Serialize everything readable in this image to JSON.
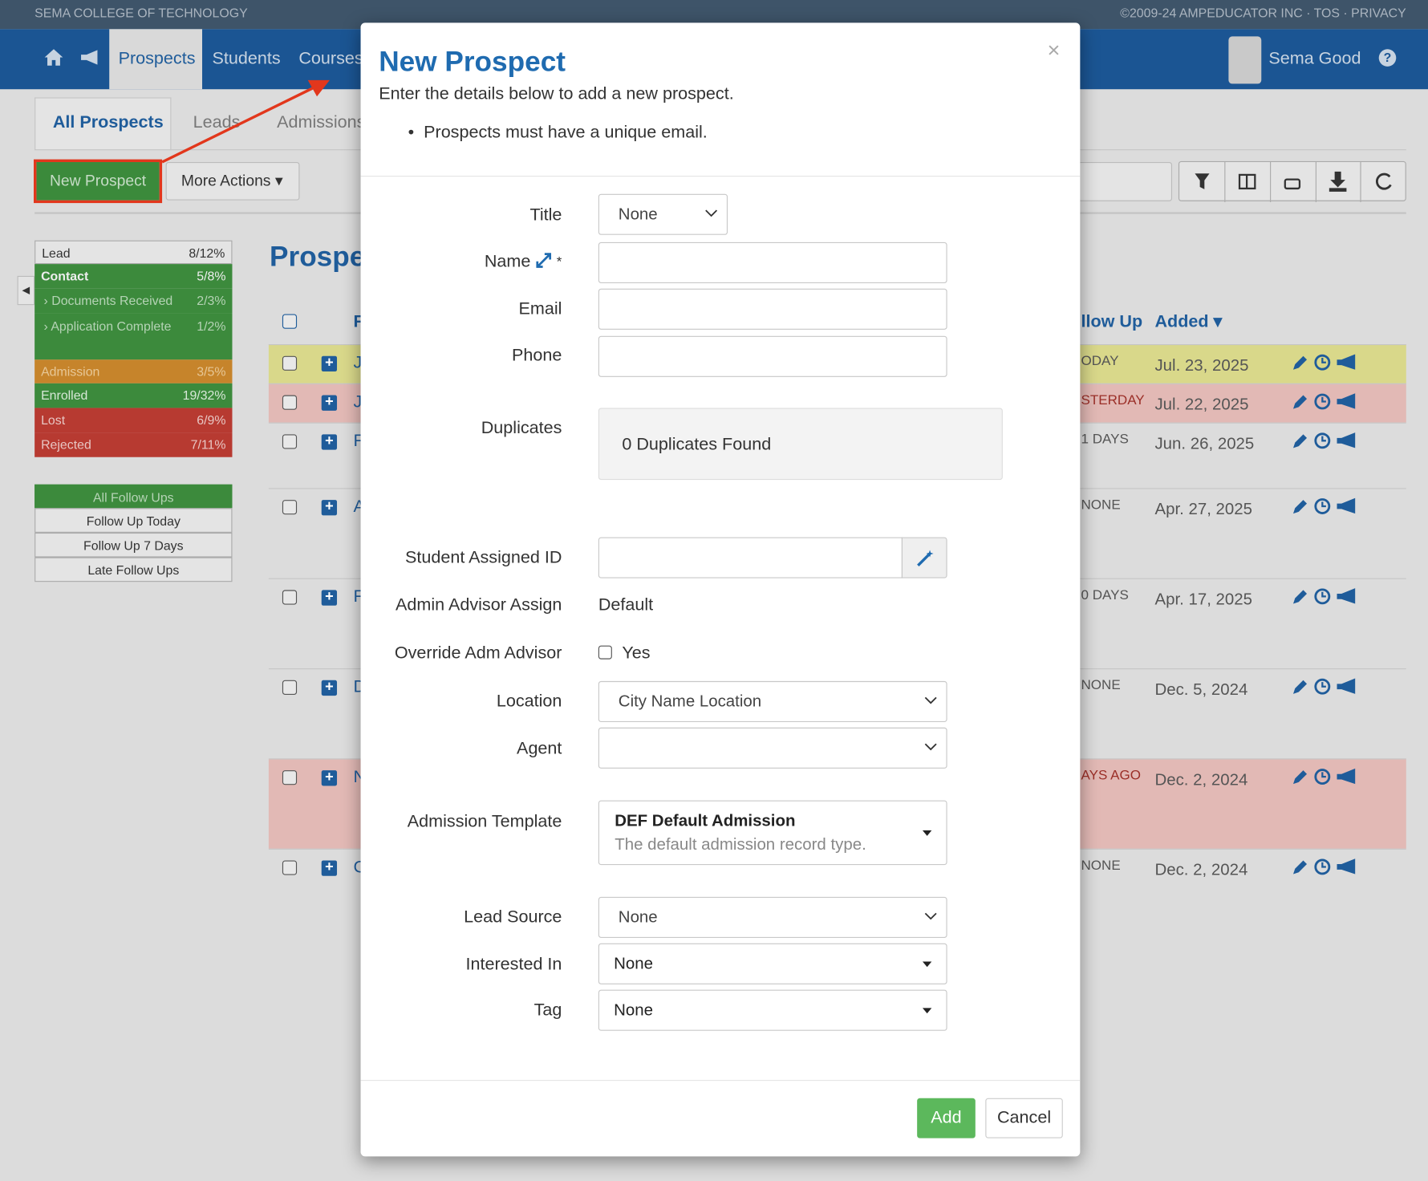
{
  "header": {
    "college": "SEMA COLLEGE OF TECHNOLOGY",
    "copyright": "©2009-24 AMPEDUCATOR INC",
    "tos": "TOS",
    "privacy": "PRIVACY"
  },
  "nav": {
    "items": [
      "Prospects",
      "Students",
      "Courses"
    ],
    "user": "Sema Good"
  },
  "tabs": [
    "All Prospects",
    "Leads",
    "Admissions"
  ],
  "toolbar": {
    "new_prospect": "New Prospect",
    "more_actions": "More Actions"
  },
  "sidebar": {
    "stages": [
      {
        "label": "Lead",
        "count": "8/12%"
      },
      {
        "label": "Contact",
        "count": "5/8%"
      },
      {
        "label": "Documents Received",
        "count": "2/3%"
      },
      {
        "label": "Application Complete",
        "count": "1/2%"
      },
      {
        "label": "Admission",
        "count": "3/5%"
      },
      {
        "label": "Enrolled",
        "count": "19/32%"
      },
      {
        "label": "Lost",
        "count": "6/9%"
      },
      {
        "label": "Rejected",
        "count": "7/11%"
      }
    ],
    "follow_ups": [
      "All Follow Ups",
      "Follow Up Today",
      "Follow Up 7 Days",
      "Late Follow Ups"
    ]
  },
  "list": {
    "title": "Prospe",
    "columns": [
      "F",
      "llow Up",
      "Added"
    ],
    "rows": [
      {
        "name": "J",
        "follow_up": "ODAY",
        "added": "Jul. 23, 2025"
      },
      {
        "name": "J",
        "follow_up": "STERDAY",
        "added": "Jul. 22, 2025"
      },
      {
        "name": "F",
        "follow_up": "1 DAYS",
        "added": "Jun. 26, 2025"
      },
      {
        "name": "A",
        "follow_up": "NONE",
        "added": "Apr. 27, 2025"
      },
      {
        "name": "F",
        "follow_up": "0 DAYS",
        "added": "Apr. 17, 2025"
      },
      {
        "name": "D",
        "follow_up": "NONE",
        "added": "Dec. 5, 2024"
      },
      {
        "name": "N",
        "follow_up": "AYS AGO",
        "added": "Dec. 2, 2024"
      },
      {
        "name": "C",
        "follow_up": "NONE",
        "added": "Dec. 2, 2024"
      }
    ]
  },
  "modal": {
    "title": "New Prospect",
    "intro": "Enter the details below to add a new prospect.",
    "bullets": [
      "Prospects must have a unique email."
    ],
    "close": "×",
    "labels": {
      "title": "Title",
      "name": "Name",
      "required": "*",
      "email": "Email",
      "phone": "Phone",
      "duplicates": "Duplicates",
      "student_id": "Student Assigned ID",
      "admin_advisor": "Admin Advisor Assign",
      "override": "Override Adm Advisor",
      "location": "Location",
      "agent": "Agent",
      "template": "Admission Template",
      "lead_source": "Lead Source",
      "interested": "Interested In",
      "tag": "Tag"
    },
    "values": {
      "title": "None",
      "duplicates": "0 Duplicates Found",
      "admin_advisor": "Default",
      "override": "Yes",
      "location": "City Name Location",
      "template_name": "DEF Default Admission",
      "template_desc": "The default admission record type.",
      "lead_source": "None",
      "interested": "None",
      "tag": "None"
    },
    "buttons": {
      "add": "Add",
      "cancel": "Cancel"
    }
  }
}
